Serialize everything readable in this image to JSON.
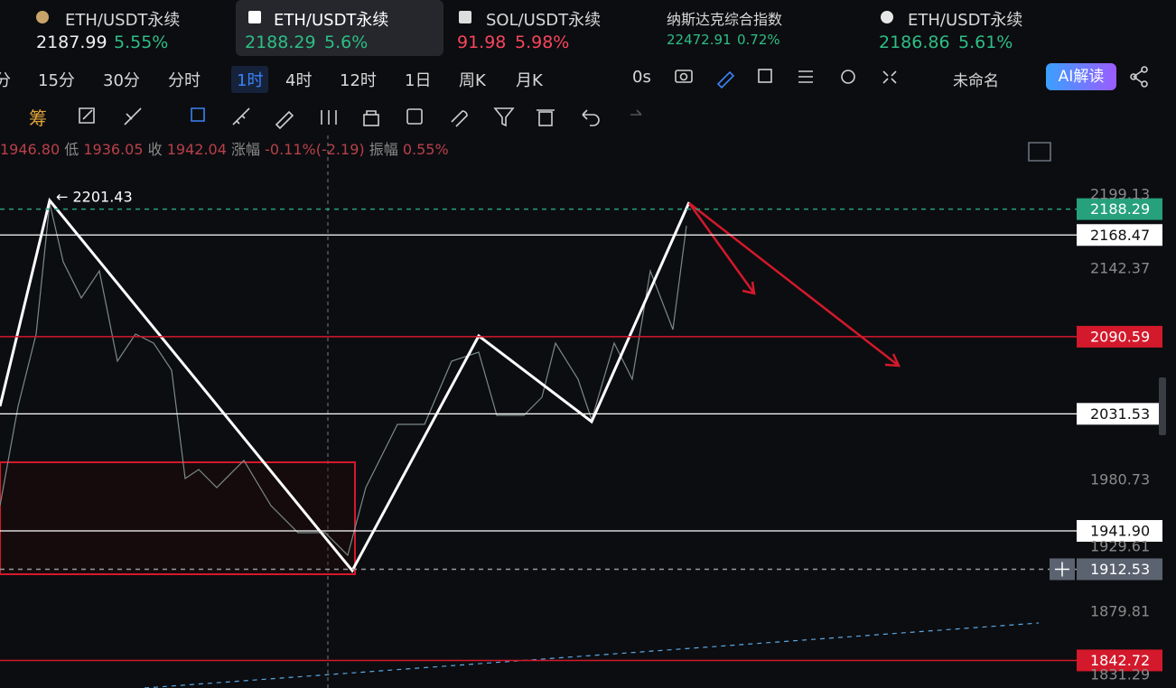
{
  "tickers": [
    {
      "name": "ETH/USDT永续",
      "price": "2187.99",
      "change": "5.55%",
      "dir": "up"
    },
    {
      "name": "ETH/USDT永续",
      "price": "2188.29",
      "change": "5.6%",
      "dir": "up"
    },
    {
      "name": "SOL/USDT永续",
      "price": "91.98",
      "change": "5.98%",
      "dir": "down"
    },
    {
      "name": "纳斯达克综合指数",
      "price": "22472.91",
      "change": "0.72%",
      "dir": "up"
    },
    {
      "name": "ETH/USDT永续",
      "price": "2186.86",
      "change": "5.61%",
      "dir": "up"
    }
  ],
  "timeframes": [
    "分",
    "15分",
    "30分",
    "分时",
    "1时",
    "4时",
    "12时",
    "1日",
    "周K",
    "月K"
  ],
  "active_timeframe": 4,
  "countdown": "0s",
  "layout_name": "未命名",
  "ai_button": "AI解读",
  "ohlc": {
    "open": "1946.80",
    "low_label": "低",
    "low": "1936.05",
    "close_label": "收",
    "close": "1942.04",
    "change_label": "涨幅",
    "change": "-0.11%(-2.19)",
    "amp_label": "振幅",
    "amp": "0.55%"
  },
  "peak_label": "← 2201.43",
  "price_scale": {
    "ylim": [
      1821.6,
      2244.7
    ],
    "ticks": [
      2199.13,
      2142.37,
      1980.73,
      1929.61,
      1879.81,
      1831.29
    ]
  },
  "levels": [
    {
      "value": 2188.29,
      "color": "#26a17b"
    },
    {
      "value": 2168.47,
      "color": "#ffffff"
    },
    {
      "value": 2090.59,
      "color": "#d3192b"
    },
    {
      "value": 2031.53,
      "color": "#ffffff"
    },
    {
      "value": 1941.9,
      "label": "1941.90",
      "color": "#ffffff"
    },
    {
      "value": 1912.53,
      "color": "#5b6270"
    },
    {
      "value": 1842.72,
      "color": "#d3192b"
    }
  ]
}
